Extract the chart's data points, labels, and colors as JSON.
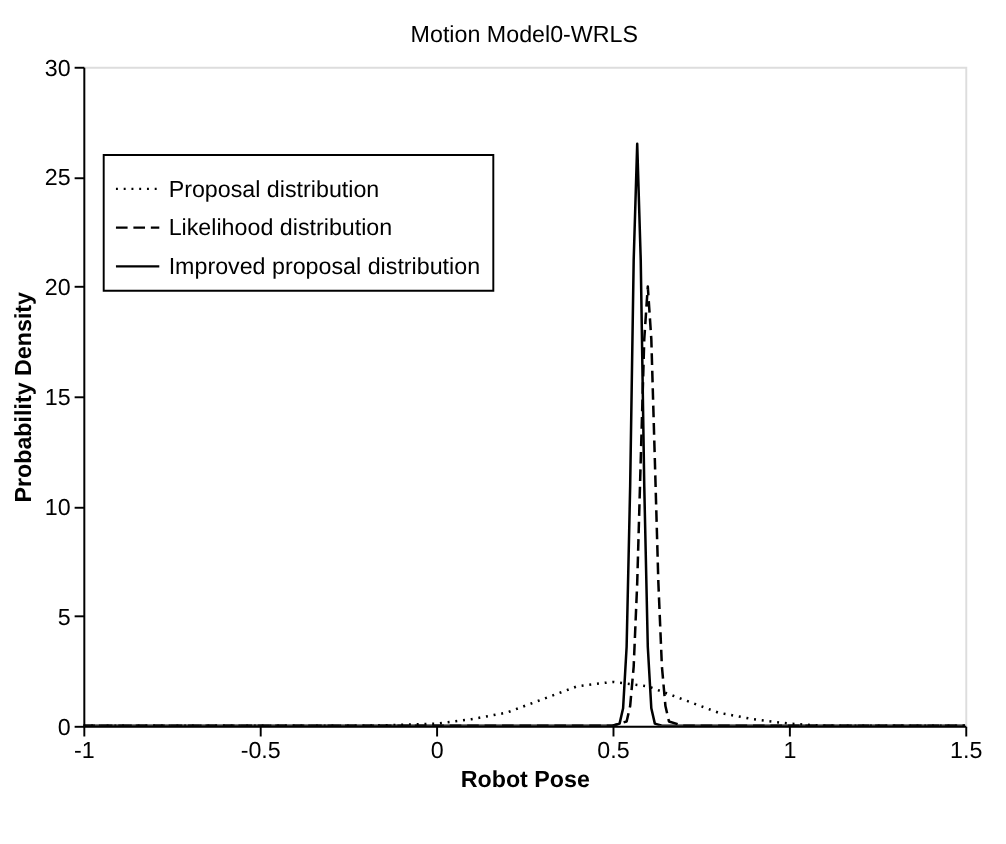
{
  "chart_data": {
    "type": "line",
    "title": "Motion Model0-WRLS",
    "xlabel": "Robot Pose",
    "ylabel": "Probability Density",
    "xlim": [
      -1,
      1.5
    ],
    "ylim": [
      0,
      30
    ],
    "xticks": [
      -1,
      -0.5,
      0,
      0.5,
      1,
      1.5
    ],
    "yticks": [
      0,
      5,
      10,
      15,
      20,
      25,
      30
    ],
    "grid": false,
    "legend": "top left",
    "marker": "none",
    "series": [
      {
        "name": "Proposal distribution",
        "color": "#000000",
        "line_style": "dotted",
        "x": [
          -1,
          -0.5,
          -0.2,
          0,
          0.1,
          0.2,
          0.3,
          0.4,
          0.5,
          0.6,
          0.7,
          0.8,
          0.9,
          1.0,
          1.1,
          1.2,
          1.5
        ],
        "values": [
          0,
          0,
          0,
          0.1,
          0.3,
          0.6,
          1.2,
          1.8,
          2.0,
          1.8,
          1.2,
          0.6,
          0.3,
          0.1,
          0,
          0,
          0
        ]
      },
      {
        "name": "Likelihood distribution",
        "color": "#000000",
        "line_style": "dashed",
        "x": [
          -1,
          0.5,
          0.54,
          0.55,
          0.56,
          0.57,
          0.58,
          0.59,
          0.6,
          0.61,
          0.62,
          0.63,
          0.64,
          0.65,
          0.66,
          0.7,
          1.5
        ],
        "values": [
          0,
          0,
          0.2,
          0.9,
          2.7,
          6.5,
          12.1,
          17.6,
          20,
          17.6,
          12.1,
          6.5,
          2.7,
          0.9,
          0.2,
          0,
          0
        ]
      },
      {
        "name": "Improved proposal distribution",
        "color": "#000000",
        "line_style": "solid",
        "x": [
          -1,
          0.5,
          0.52,
          0.53,
          0.54,
          0.55,
          0.56,
          0.57,
          0.58,
          0.59,
          0.6,
          0.61,
          0.62,
          0.64,
          1.5
        ],
        "values": [
          0,
          0,
          0.1,
          0.8,
          3.6,
          10.9,
          21.2,
          26.5,
          21.2,
          10.9,
          3.6,
          0.8,
          0.1,
          0,
          0
        ]
      }
    ]
  }
}
